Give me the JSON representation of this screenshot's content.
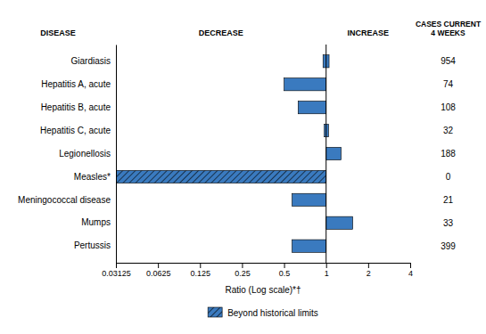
{
  "chart_data": {
    "type": "bar",
    "orientation": "horizontal",
    "log": "x",
    "grid": false,
    "categories": [
      "Giardiasis",
      "Hepatitis A, acute",
      "Hepatitis B, acute",
      "Hepatitis C, acute",
      "Legionellosis",
      "Measles*",
      "Meningococcal disease",
      "Mumps",
      "Pertussis"
    ],
    "values": [
      [
        0.95,
        1.05
      ],
      [
        0.5,
        1.0
      ],
      [
        0.63,
        1.0
      ],
      [
        0.97,
        1.04
      ],
      [
        1.0,
        1.28
      ],
      [
        0.03125,
        1.0
      ],
      [
        0.57,
        1.0
      ],
      [
        1.0,
        1.55
      ],
      [
        0.57,
        1.0
      ]
    ],
    "color": "#3a7abf",
    "xlim": [
      0.03125,
      4.0
    ],
    "xticks": [
      0.03125,
      0.0625,
      0.125,
      0.25,
      0.5,
      1,
      2,
      4
    ],
    "x_label": "Ratio (Log scale)*†",
    "reference_line": 1,
    "hatch": [
      false,
      false,
      false,
      false,
      false,
      true,
      false,
      false,
      false
    ],
    "legend": "bottom",
    "legend_label": "Beyond historical limits",
    "cases_current": [
      954,
      74,
      108,
      32,
      188,
      0,
      21,
      33,
      399
    ],
    "column_headers": {
      "disease": "DISEASE",
      "decrease": "DECREASE",
      "increase": "INCREASE",
      "cases": "CASES CURRENT\n4 WEEKS"
    }
  }
}
